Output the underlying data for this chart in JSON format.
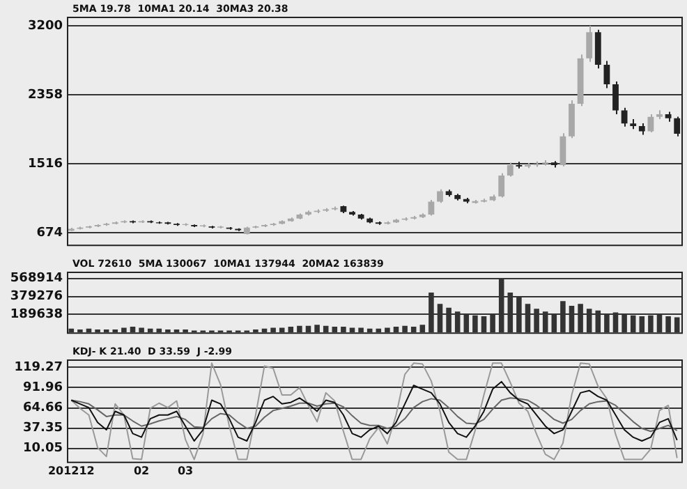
{
  "chart_data": [
    {
      "type": "candlestick",
      "title": "5MA 19.78  10MA1 20.14  30MA3 20.38",
      "colors": [
        "#a8a8a8",
        "#a8a8a8",
        "#a8a8a8",
        "#a8a8a8",
        "#a8a8a8",
        "#a8a8a8",
        "#a8a8a8",
        "#222222",
        "#a8a8a8",
        "#222222",
        "#222222",
        "#222222",
        "#222222",
        "#a8a8a8",
        "#222222",
        "#a8a8a8",
        "#222222",
        "#a8a8a8",
        "#222222",
        "#222222",
        "#a8a8a8",
        "#a8a8a8",
        "#a8a8a8",
        "#a8a8a8",
        "#a8a8a8",
        "#a8a8a8",
        "#a8a8a8",
        "#a8a8a8",
        "#a8a8a8",
        "#a8a8a8",
        "#a8a8a8",
        "#222222",
        "#222222",
        "#222222",
        "#222222",
        "#222222",
        "#a8a8a8",
        "#a8a8a8",
        "#a8a8a8",
        "#a8a8a8",
        "#a8a8a8",
        "#a8a8a8",
        "#a8a8a8",
        "#222222",
        "#222222",
        "#222222",
        "#a8a8a8",
        "#a8a8a8",
        "#a8a8a8",
        "#a8a8a8",
        "#a8a8a8",
        "#222222",
        "#a8a8a8",
        "#a8a8a8",
        "#a8a8a8",
        "#222222",
        "#a8a8a8",
        "#a8a8a8",
        "#a8a8a8",
        "#a8a8a8",
        "#222222",
        "#222222",
        "#222222",
        "#222222",
        "#222222",
        "#222222",
        "#a8a8a8",
        "#a8a8a8",
        "#222222",
        "#222222"
      ],
      "tick_labels": "y",
      "grid": "y",
      "categories": [
        "201212",
        null,
        null,
        null,
        null,
        null,
        null,
        null,
        "02",
        null,
        null,
        null,
        null,
        "03",
        null,
        null,
        null,
        null,
        null,
        null,
        null,
        null,
        null,
        null,
        null,
        null,
        null,
        null,
        null,
        null,
        null,
        null,
        null,
        null,
        null,
        null,
        null,
        null,
        null,
        null,
        null,
        null,
        null,
        null,
        null,
        null,
        null,
        null,
        null,
        null,
        null,
        null,
        null,
        null,
        null,
        null,
        null,
        null,
        null,
        null,
        null,
        null,
        null,
        null,
        null,
        null,
        null,
        null,
        null,
        null
      ],
      "ohlc": [
        [
          700,
          735,
          695,
          722
        ],
        [
          722,
          748,
          715,
          738
        ],
        [
          738,
          762,
          730,
          753
        ],
        [
          753,
          778,
          745,
          769
        ],
        [
          769,
          795,
          760,
          785
        ],
        [
          785,
          812,
          778,
          801
        ],
        [
          801,
          828,
          792,
          817
        ],
        [
          817,
          825,
          790,
          801
        ],
        [
          801,
          828,
          795,
          817
        ],
        [
          817,
          824,
          792,
          801
        ],
        [
          801,
          812,
          785,
          790
        ],
        [
          801,
          808,
          775,
          785
        ],
        [
          785,
          792,
          760,
          769
        ],
        [
          769,
          790,
          758,
          780
        ],
        [
          769,
          775,
          745,
          753
        ],
        [
          753,
          775,
          742,
          765
        ],
        [
          753,
          760,
          728,
          738
        ],
        [
          738,
          760,
          728,
          750
        ],
        [
          738,
          745,
          712,
          722
        ],
        [
          722,
          730,
          695,
          706
        ],
        [
          660,
          748,
          655,
          738
        ],
        [
          738,
          762,
          730,
          753
        ],
        [
          753,
          778,
          745,
          769
        ],
        [
          769,
          795,
          760,
          785
        ],
        [
          785,
          828,
          778,
          817
        ],
        [
          817,
          860,
          810,
          849
        ],
        [
          849,
          910,
          840,
          896
        ],
        [
          896,
          945,
          885,
          928
        ],
        [
          928,
          960,
          915,
          944
        ],
        [
          944,
          975,
          930,
          960
        ],
        [
          960,
          995,
          948,
          976
        ],
        [
          1000,
          1005,
          915,
          928
        ],
        [
          928,
          940,
          885,
          896
        ],
        [
          896,
          905,
          835,
          849
        ],
        [
          849,
          858,
          790,
          801
        ],
        [
          801,
          812,
          772,
          785
        ],
        [
          785,
          815,
          775,
          801
        ],
        [
          801,
          845,
          795,
          833
        ],
        [
          833,
          862,
          822,
          849
        ],
        [
          849,
          880,
          838,
          865
        ],
        [
          865,
          912,
          855,
          896
        ],
        [
          896,
          1075,
          885,
          1055
        ],
        [
          1055,
          1205,
          1040,
          1182
        ],
        [
          1182,
          1200,
          1115,
          1135
        ],
        [
          1135,
          1150,
          1070,
          1087
        ],
        [
          1087,
          1100,
          1035,
          1055
        ],
        [
          1040,
          1075,
          1030,
          1060
        ],
        [
          1055,
          1090,
          1045,
          1071
        ],
        [
          1071,
          1140,
          1060,
          1119
        ],
        [
          1119,
          1400,
          1105,
          1373
        ],
        [
          1373,
          1530,
          1360,
          1500
        ],
        [
          1500,
          1540,
          1460,
          1484
        ],
        [
          1484,
          1525,
          1465,
          1500
        ],
        [
          1500,
          1545,
          1480,
          1516
        ],
        [
          1516,
          1560,
          1495,
          1532
        ],
        [
          1532,
          1550,
          1470,
          1500
        ],
        [
          1500,
          1890,
          1485,
          1850
        ],
        [
          1850,
          2290,
          1830,
          2247
        ],
        [
          2247,
          2850,
          2220,
          2803
        ],
        [
          2803,
          3200,
          2760,
          3121
        ],
        [
          3121,
          3150,
          2680,
          2724
        ],
        [
          2724,
          2770,
          2440,
          2485
        ],
        [
          2485,
          2520,
          2120,
          2168
        ],
        [
          2168,
          2200,
          1970,
          2009
        ],
        [
          2009,
          2060,
          1940,
          1977
        ],
        [
          1977,
          2010,
          1870,
          1913
        ],
        [
          1913,
          2120,
          1900,
          2088
        ],
        [
          2088,
          2170,
          2060,
          2120
        ],
        [
          2120,
          2150,
          2030,
          2072
        ],
        [
          2072,
          2090,
          1850,
          1882
        ]
      ],
      "ylim": [
        530,
        3310
      ],
      "yticks": [
        674,
        1516,
        2358,
        3200
      ]
    },
    {
      "type": "bar",
      "title": "VOL 72610  5MA 130067  10MA1 137944  20MA2 163839",
      "color": "#333333",
      "tick_labels": "y",
      "grid": "y",
      "categories": [
        "201212",
        null,
        null,
        null,
        null,
        null,
        null,
        null,
        "02",
        null,
        null,
        null,
        null,
        "03",
        null,
        null,
        null,
        null,
        null,
        null,
        null,
        null,
        null,
        null,
        null,
        null,
        null,
        null,
        null,
        null,
        null,
        null,
        null,
        null,
        null,
        null,
        null,
        null,
        null,
        null,
        null,
        null,
        null,
        null,
        null,
        null,
        null,
        null,
        null,
        null,
        null,
        null,
        null,
        null,
        null,
        null,
        null,
        null,
        null,
        null,
        null,
        null,
        null,
        null,
        null,
        null,
        null,
        null,
        null,
        null
      ],
      "values": [
        40000,
        30000,
        40000,
        30000,
        30000,
        30000,
        50000,
        60000,
        50000,
        40000,
        40000,
        30000,
        30000,
        30000,
        20000,
        20000,
        20000,
        20000,
        20000,
        20000,
        20000,
        30000,
        40000,
        50000,
        50000,
        60000,
        70000,
        70000,
        80000,
        70000,
        60000,
        60000,
        50000,
        50000,
        40000,
        40000,
        50000,
        60000,
        70000,
        60000,
        80000,
        420000,
        300000,
        260000,
        220000,
        200000,
        180000,
        170000,
        190000,
        560000,
        420000,
        380000,
        300000,
        250000,
        220000,
        200000,
        330000,
        280000,
        300000,
        250000,
        230000,
        200000,
        210000,
        190000,
        180000,
        170000,
        180000,
        200000,
        170000,
        160000
      ],
      "ylim": [
        0,
        640000
      ],
      "yticks": [
        189638,
        379276,
        568914
      ]
    },
    {
      "type": "line",
      "title": "KDJ- K 21.40  D 33.59  J -2.99",
      "grid": "y",
      "marker": "none",
      "line_style": "solid",
      "categories": [
        "201212",
        null,
        null,
        null,
        null,
        null,
        null,
        null,
        "02",
        null,
        null,
        null,
        null,
        "03",
        null,
        null,
        null,
        null,
        null,
        null,
        null,
        null,
        null,
        null,
        null,
        null,
        null,
        null,
        null,
        null,
        null,
        null,
        null,
        null,
        null,
        null,
        null,
        null,
        null,
        null,
        null,
        null,
        null,
        null,
        null,
        null,
        null,
        null,
        null,
        null,
        null,
        null,
        null,
        null,
        null,
        null,
        null,
        null,
        null,
        null,
        null,
        null,
        null,
        null,
        null,
        null,
        null,
        null,
        null,
        null
      ],
      "series": [
        {
          "color": "#111111",
          "values": [
            75,
            70,
            65,
            45,
            35,
            60,
            55,
            30,
            25,
            50,
            55,
            55,
            60,
            40,
            20,
            35,
            75,
            70,
            50,
            25,
            20,
            45,
            75,
            80,
            70,
            72,
            78,
            70,
            60,
            75,
            72,
            55,
            30,
            25,
            35,
            40,
            30,
            45,
            70,
            95,
            90,
            85,
            70,
            45,
            30,
            25,
            40,
            60,
            90,
            100,
            85,
            75,
            70,
            55,
            40,
            30,
            35,
            60,
            85,
            88,
            80,
            75,
            55,
            35,
            25,
            20,
            25,
            45,
            50,
            21
          ]
        },
        {
          "color": "#666666",
          "values": [
            75,
            73,
            70,
            62,
            53,
            55,
            55,
            47,
            40,
            43,
            47,
            50,
            53,
            49,
            39,
            38,
            50,
            57,
            55,
            45,
            37,
            40,
            52,
            61,
            64,
            67,
            71,
            71,
            67,
            70,
            71,
            66,
            54,
            44,
            41,
            41,
            37,
            40,
            50,
            65,
            73,
            77,
            75,
            65,
            53,
            44,
            43,
            49,
            63,
            75,
            78,
            77,
            75,
            68,
            59,
            49,
            44,
            49,
            61,
            70,
            73,
            74,
            68,
            57,
            46,
            37,
            33,
            37,
            41,
            34
          ]
        },
        {
          "color": "#999999",
          "values": [
            75,
            64,
            55,
            11,
            -1,
            70,
            55,
            -4,
            -5,
            64,
            71,
            65,
            74,
            22,
            -5,
            29,
            125,
            96,
            40,
            -5,
            -5,
            55,
            121,
            118,
            82,
            82,
            92,
            68,
            46,
            85,
            74,
            33,
            -5,
            -5,
            23,
            38,
            16,
            55,
            110,
            125,
            124,
            101,
            60,
            5,
            -5,
            -5,
            34,
            82,
            125,
            125,
            99,
            71,
            60,
            29,
            2,
            -5,
            17,
            82,
            125,
            124,
            94,
            77,
            29,
            -5,
            -5,
            -5,
            9,
            61,
            68,
            -3
          ]
        }
      ],
      "ylim": [
        -8,
        130
      ],
      "yticks": [
        10.05,
        37.35,
        64.66,
        91.96,
        119.27
      ]
    }
  ]
}
